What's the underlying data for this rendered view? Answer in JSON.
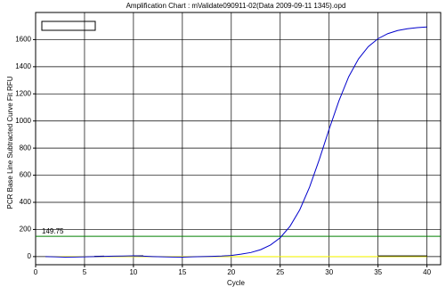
{
  "chart_data": {
    "type": "line",
    "title": "Amplification Chart : mValidate090911-02(Data 2009-09-11 1345).opd",
    "x_label": "Cycle",
    "y_label": "PCR Base Line Subtracted Curve Fit RFU",
    "x": [
      1,
      2,
      3,
      4,
      5,
      6,
      7,
      8,
      9,
      10,
      11,
      12,
      13,
      14,
      15,
      16,
      17,
      18,
      19,
      20,
      21,
      22,
      23,
      24,
      25,
      26,
      27,
      28,
      29,
      30,
      31,
      32,
      33,
      34,
      35,
      36,
      37,
      38,
      39,
      40
    ],
    "series": [
      {
        "color": "#ffff00",
        "values": [
          0,
          0,
          0,
          0,
          0,
          0,
          0,
          0,
          0,
          0,
          0,
          0,
          0,
          0,
          0,
          0,
          0,
          0,
          0,
          0,
          0,
          0,
          0,
          0,
          0,
          0,
          0,
          0,
          0,
          0,
          0,
          0,
          0,
          0,
          0,
          0,
          0,
          0,
          0,
          0
        ]
      },
      {
        "color": "#000000",
        "values": [
          null,
          null,
          null,
          null,
          null,
          2,
          3,
          null,
          null,
          5,
          6,
          null,
          null,
          null,
          null,
          null,
          null,
          null,
          null,
          null,
          null,
          null,
          null,
          null,
          null,
          null,
          null,
          null,
          null,
          null,
          null,
          null,
          null,
          null,
          5,
          5,
          5,
          5,
          5,
          5
        ]
      },
      {
        "color": "#0000cc",
        "values": [
          0,
          -2,
          -4,
          -3,
          -2,
          0,
          2,
          3,
          4,
          6,
          3,
          0,
          -2,
          -3,
          -4,
          -2,
          0,
          2,
          4,
          8,
          18,
          30,
          51,
          85,
          139,
          223,
          345,
          512,
          717,
          939,
          1148,
          1326,
          1457,
          1548,
          1607,
          1644,
          1667,
          1680,
          1688,
          1693
        ]
      }
    ],
    "threshold": 149.75,
    "threshold_color": "#008000",
    "xlim": [
      0,
      41.4
    ],
    "ylim": [
      -60,
      1800
    ],
    "xticks": [
      0,
      5,
      10,
      15,
      20,
      25,
      30,
      35,
      40
    ],
    "yticks": [
      0,
      200,
      400,
      600,
      800,
      1000,
      1200,
      1400,
      1600
    ],
    "grid": true
  }
}
